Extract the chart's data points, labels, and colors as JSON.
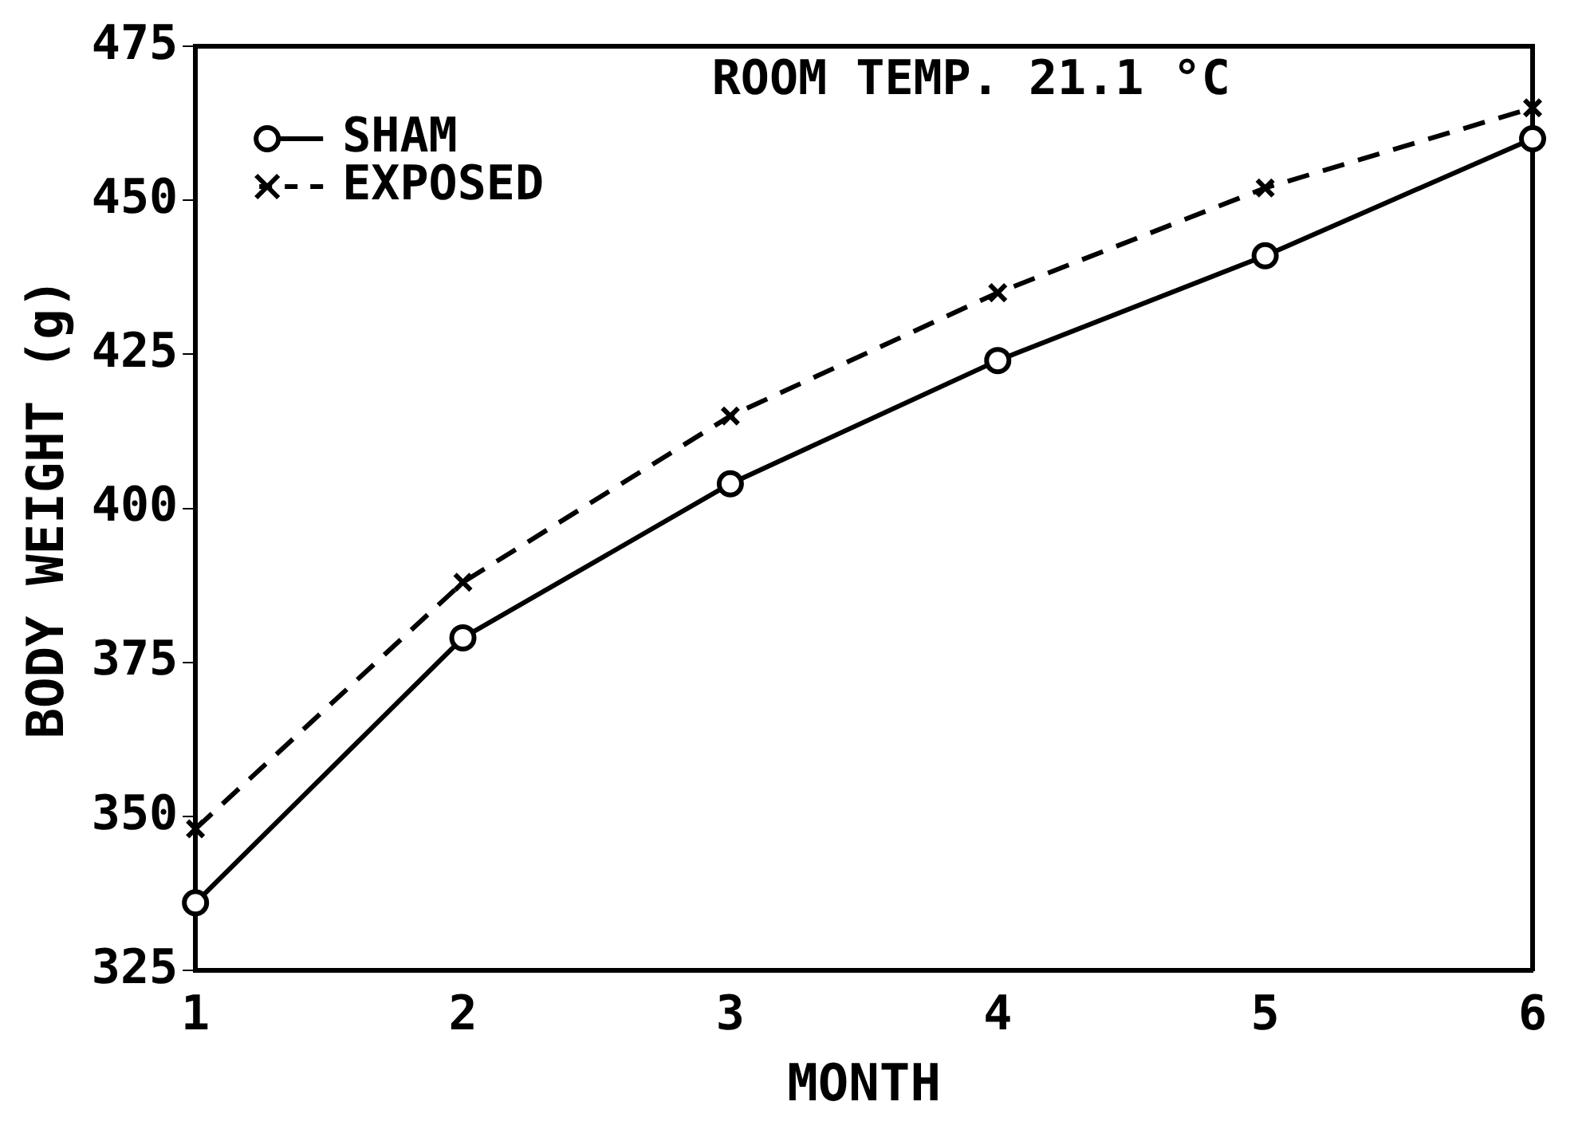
{
  "chart_data": {
    "type": "line",
    "xlabel": "MONTH",
    "ylabel": "BODY WEIGHT (g)",
    "x": [
      1,
      2,
      3,
      4,
      5,
      6
    ],
    "series": [
      {
        "name": "SHAM",
        "color": "#000000",
        "marker": "circle",
        "line_style": "solid",
        "values": [
          336,
          379,
          404,
          424,
          441,
          460
        ]
      },
      {
        "name": "EXPOSED",
        "color": "#000000",
        "marker": "cross",
        "line_style": "dashed",
        "values": [
          348,
          388,
          415,
          435,
          452,
          465
        ]
      }
    ],
    "xlim": [
      1,
      6
    ],
    "xticks": [
      1,
      2,
      3,
      4,
      5,
      6
    ],
    "ylim": [
      325,
      475
    ],
    "yticks": [
      325,
      350,
      375,
      400,
      425,
      450,
      475
    ],
    "grid": false,
    "legend": "top left",
    "annotations": [
      "ROOM TEMP. 21.1 °C"
    ]
  }
}
